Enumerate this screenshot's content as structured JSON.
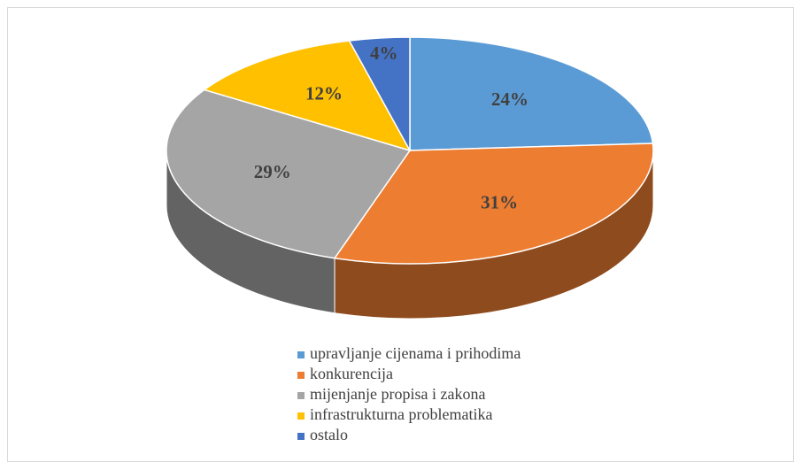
{
  "chart_data": {
    "type": "pie3d",
    "categories": [
      "upravljanje cijenama i prihodima",
      "konkurencija",
      "mijenjanje propisa i zakona",
      "infrastrukturna problematika",
      "ostalo"
    ],
    "values": [
      24,
      31,
      29,
      12,
      4
    ],
    "value_labels": [
      "24%",
      "31%",
      "29%",
      "12%",
      "4%"
    ],
    "colors": [
      "#5b9bd5",
      "#ed7d31",
      "#a5a5a5",
      "#ffc000",
      "#4472c4"
    ],
    "legend": "bottom"
  }
}
